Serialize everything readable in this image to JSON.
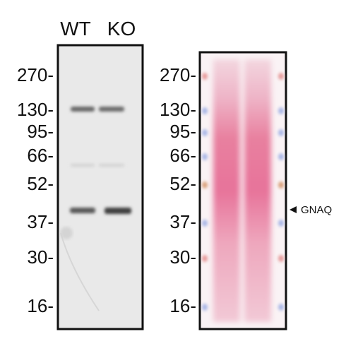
{
  "lanes": [
    "WT",
    "KO"
  ],
  "markers": [
    "270-",
    "130-",
    "95-",
    "66-",
    "52-",
    "37-",
    "30-",
    "16-"
  ],
  "annotation": "GNAQ"
}
